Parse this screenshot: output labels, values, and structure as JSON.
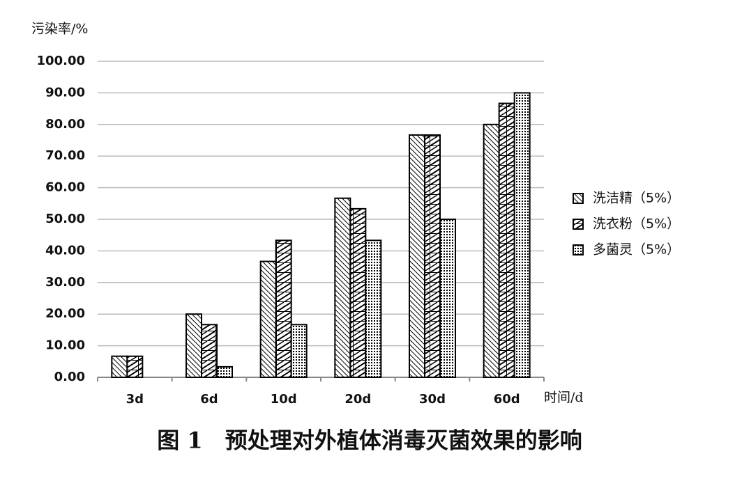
{
  "chart_data": {
    "type": "bar",
    "title": "图 1　预处理对外植体消毒灭菌效果的影响",
    "y_label": "污染率/%",
    "x_label": "时间/d",
    "categories": [
      "3d",
      "6d",
      "10d",
      "20d",
      "30d",
      "60d"
    ],
    "series": [
      {
        "name": "洗洁精（5%）",
        "color": "#000000",
        "values": [
          6.67,
          20,
          36.67,
          56.67,
          76.67,
          80
        ]
      },
      {
        "name": "洗衣粉（5%）",
        "color": "#000000",
        "values": [
          6.67,
          16.67,
          43.33,
          53.33,
          76.67,
          86.67
        ]
      },
      {
        "name": "多菌灵（5%）",
        "color": "#000000",
        "values": [
          0,
          3.33,
          16.67,
          43.33,
          50,
          90
        ]
      }
    ],
    "ylim": [
      0,
      100
    ],
    "yticks": [
      {
        "value": 0,
        "label": "0.00"
      },
      {
        "value": 10,
        "label": "10.00"
      },
      {
        "value": 20,
        "label": "20.00"
      },
      {
        "value": 30,
        "label": "30.00"
      },
      {
        "value": 40,
        "label": "40.00"
      },
      {
        "value": 50,
        "label": "50.00"
      },
      {
        "value": 60,
        "label": "60.00"
      },
      {
        "value": 70,
        "label": "70.00"
      },
      {
        "value": 80,
        "label": "80.00"
      },
      {
        "value": 90,
        "label": "90.00"
      },
      {
        "value": 100,
        "label": "100.00"
      }
    ],
    "grid": true,
    "legend": "right"
  }
}
